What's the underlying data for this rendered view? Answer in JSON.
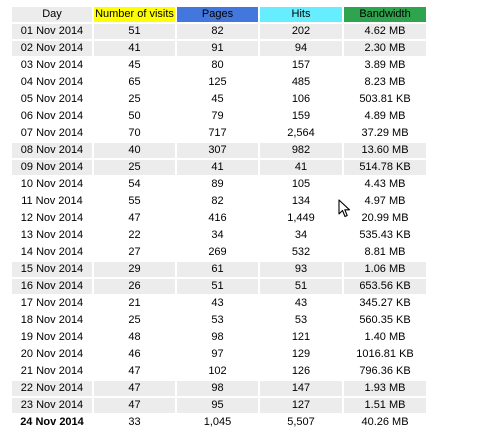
{
  "header": {
    "day": "Day",
    "visits": "Number of visits",
    "pages": "Pages",
    "hits": "Hits",
    "bandwidth": "Bandwidth"
  },
  "colors": {
    "visits": "#ffff00",
    "pages": "#4477dd",
    "hits": "#66eeff",
    "bandwidth": "#2ea44f",
    "row_shade": "#ececec"
  },
  "rows": [
    {
      "day": "01 Nov 2014",
      "visits": "51",
      "pages": "82",
      "hits": "202",
      "bandwidth": "4.62 MB",
      "shaded": true
    },
    {
      "day": "02 Nov 2014",
      "visits": "41",
      "pages": "91",
      "hits": "94",
      "bandwidth": "2.30 MB",
      "shaded": true
    },
    {
      "day": "03 Nov 2014",
      "visits": "45",
      "pages": "80",
      "hits": "157",
      "bandwidth": "3.89 MB",
      "shaded": false
    },
    {
      "day": "04 Nov 2014",
      "visits": "65",
      "pages": "125",
      "hits": "485",
      "bandwidth": "8.23 MB",
      "shaded": false
    },
    {
      "day": "05 Nov 2014",
      "visits": "25",
      "pages": "45",
      "hits": "106",
      "bandwidth": "503.81 KB",
      "shaded": false
    },
    {
      "day": "06 Nov 2014",
      "visits": "50",
      "pages": "79",
      "hits": "159",
      "bandwidth": "4.89 MB",
      "shaded": false
    },
    {
      "day": "07 Nov 2014",
      "visits": "70",
      "pages": "717",
      "hits": "2,564",
      "bandwidth": "37.29 MB",
      "shaded": false
    },
    {
      "day": "08 Nov 2014",
      "visits": "40",
      "pages": "307",
      "hits": "982",
      "bandwidth": "13.60 MB",
      "shaded": true
    },
    {
      "day": "09 Nov 2014",
      "visits": "25",
      "pages": "41",
      "hits": "41",
      "bandwidth": "514.78 KB",
      "shaded": true
    },
    {
      "day": "10 Nov 2014",
      "visits": "54",
      "pages": "89",
      "hits": "105",
      "bandwidth": "4.43 MB",
      "shaded": false
    },
    {
      "day": "11 Nov 2014",
      "visits": "55",
      "pages": "82",
      "hits": "134",
      "bandwidth": "4.97 MB",
      "shaded": false
    },
    {
      "day": "12 Nov 2014",
      "visits": "47",
      "pages": "416",
      "hits": "1,449",
      "bandwidth": "20.99 MB",
      "shaded": false
    },
    {
      "day": "13 Nov 2014",
      "visits": "22",
      "pages": "34",
      "hits": "34",
      "bandwidth": "535.43 KB",
      "shaded": false
    },
    {
      "day": "14 Nov 2014",
      "visits": "27",
      "pages": "269",
      "hits": "532",
      "bandwidth": "8.81 MB",
      "shaded": false
    },
    {
      "day": "15 Nov 2014",
      "visits": "29",
      "pages": "61",
      "hits": "93",
      "bandwidth": "1.06 MB",
      "shaded": true
    },
    {
      "day": "16 Nov 2014",
      "visits": "26",
      "pages": "51",
      "hits": "51",
      "bandwidth": "653.56 KB",
      "shaded": true
    },
    {
      "day": "17 Nov 2014",
      "visits": "21",
      "pages": "43",
      "hits": "43",
      "bandwidth": "345.27 KB",
      "shaded": false
    },
    {
      "day": "18 Nov 2014",
      "visits": "25",
      "pages": "53",
      "hits": "53",
      "bandwidth": "560.35 KB",
      "shaded": false
    },
    {
      "day": "19 Nov 2014",
      "visits": "48",
      "pages": "98",
      "hits": "121",
      "bandwidth": "1.40 MB",
      "shaded": false
    },
    {
      "day": "20 Nov 2014",
      "visits": "46",
      "pages": "97",
      "hits": "129",
      "bandwidth": "1016.81 KB",
      "shaded": false
    },
    {
      "day": "21 Nov 2014",
      "visits": "47",
      "pages": "102",
      "hits": "126",
      "bandwidth": "796.36 KB",
      "shaded": false
    },
    {
      "day": "22 Nov 2014",
      "visits": "47",
      "pages": "98",
      "hits": "147",
      "bandwidth": "1.93 MB",
      "shaded": true
    },
    {
      "day": "23 Nov 2014",
      "visits": "47",
      "pages": "95",
      "hits": "127",
      "bandwidth": "1.51 MB",
      "shaded": true
    },
    {
      "day": "24 Nov 2014",
      "visits": "33",
      "pages": "1,045",
      "hits": "5,507",
      "bandwidth": "40.26 MB",
      "shaded": false,
      "today": true
    }
  ],
  "cursor": {
    "icon": "mouse-pointer-icon"
  }
}
